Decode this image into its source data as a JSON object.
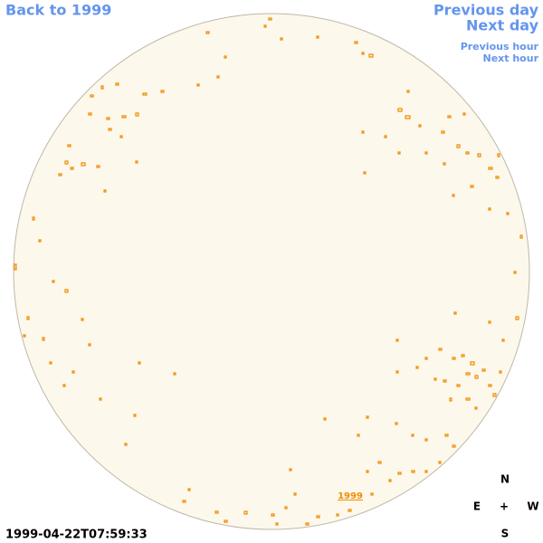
{
  "links": {
    "back": "Back to 1999",
    "previous_day": "Previous day",
    "next_day": "Next day",
    "previous_hour": "Previous hour",
    "next_hour": "Next hour"
  },
  "disk_label": "1999",
  "timestamp": "1999-04-22T07:59:33",
  "compass": {
    "north": "N",
    "east": "E",
    "center": "+",
    "west": "W",
    "south": "S"
  }
}
